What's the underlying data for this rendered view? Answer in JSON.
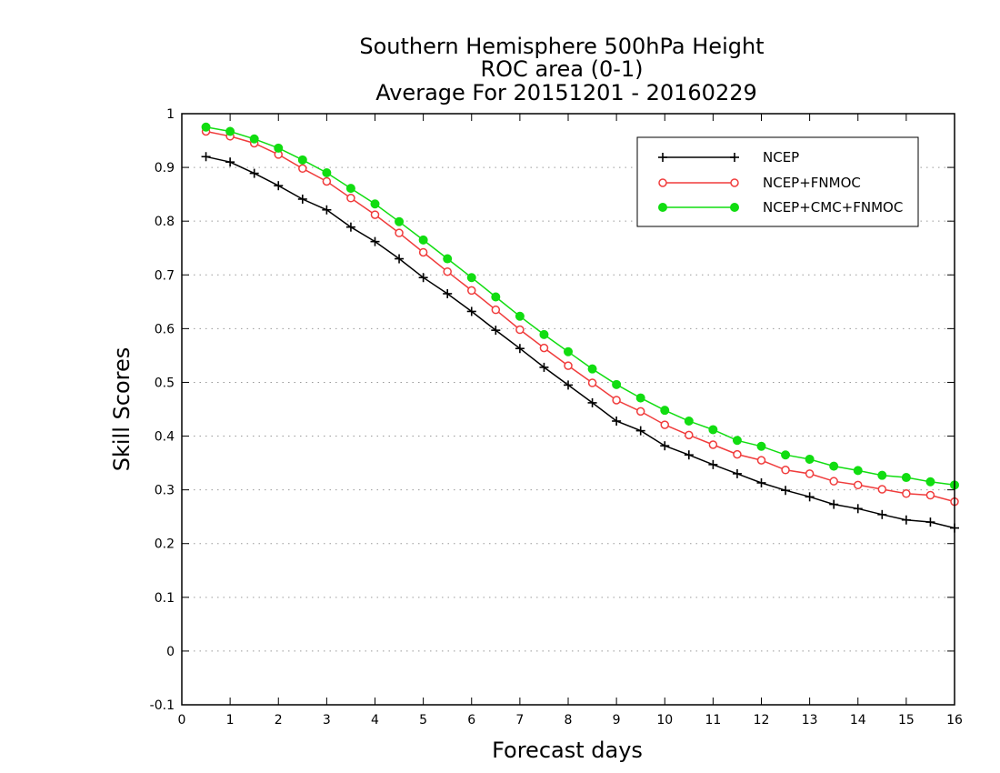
{
  "chart_data": {
    "type": "line",
    "title": [
      "Southern Hemisphere 500hPa Height",
      "ROC area (0-1)",
      "Average For 20151201 - 20160229"
    ],
    "xlabel": "Forecast days",
    "ylabel": "Skill Scores",
    "xlim": [
      0,
      16
    ],
    "ylim": [
      -0.1,
      1
    ],
    "x_ticks": [
      "0",
      "1",
      "2",
      "3",
      "4",
      "5",
      "6",
      "7",
      "8",
      "9",
      "10",
      "11",
      "12",
      "13",
      "14",
      "15",
      "16"
    ],
    "y_ticks": [
      "-0.1",
      "0",
      "0.1",
      "0.2",
      "0.3",
      "0.4",
      "0.5",
      "0.6",
      "0.7",
      "0.8",
      "0.9",
      "1"
    ],
    "grid": "horizontal dotted",
    "legend_position": "top-right",
    "x": [
      0.5,
      1,
      1.5,
      2,
      2.5,
      3,
      3.5,
      4,
      4.5,
      5,
      5.5,
      6,
      6.5,
      7,
      7.5,
      8,
      8.5,
      9,
      9.5,
      10,
      10.5,
      11,
      11.5,
      12,
      12.5,
      13,
      13.5,
      14,
      14.5,
      15,
      15.5,
      16
    ],
    "series": [
      {
        "name": "NCEP",
        "color": "#000000",
        "marker": "plus",
        "values": [
          0.92,
          0.91,
          0.889,
          0.866,
          0.841,
          0.821,
          0.789,
          0.762,
          0.73,
          0.695,
          0.665,
          0.632,
          0.597,
          0.563,
          0.528,
          0.495,
          0.462,
          0.428,
          0.41,
          0.382,
          0.365,
          0.347,
          0.33,
          0.313,
          0.299,
          0.287,
          0.273,
          0.265,
          0.254,
          0.244,
          0.24,
          0.229
        ]
      },
      {
        "name": "NCEP+FNMOC",
        "color": "#f03c3c",
        "marker": "open-circle",
        "values": [
          0.967,
          0.958,
          0.945,
          0.924,
          0.898,
          0.874,
          0.843,
          0.812,
          0.778,
          0.742,
          0.706,
          0.671,
          0.635,
          0.598,
          0.564,
          0.531,
          0.499,
          0.467,
          0.446,
          0.421,
          0.402,
          0.384,
          0.366,
          0.355,
          0.337,
          0.33,
          0.316,
          0.309,
          0.301,
          0.293,
          0.29,
          0.278
        ]
      },
      {
        "name": "NCEP+CMC+FNMOC",
        "color": "#11dd11",
        "marker": "filled-circle",
        "values": [
          0.975,
          0.967,
          0.953,
          0.936,
          0.914,
          0.89,
          0.861,
          0.832,
          0.799,
          0.765,
          0.73,
          0.695,
          0.659,
          0.623,
          0.589,
          0.557,
          0.525,
          0.496,
          0.471,
          0.448,
          0.428,
          0.412,
          0.392,
          0.381,
          0.365,
          0.357,
          0.344,
          0.336,
          0.327,
          0.323,
          0.315,
          0.309
        ]
      }
    ]
  }
}
